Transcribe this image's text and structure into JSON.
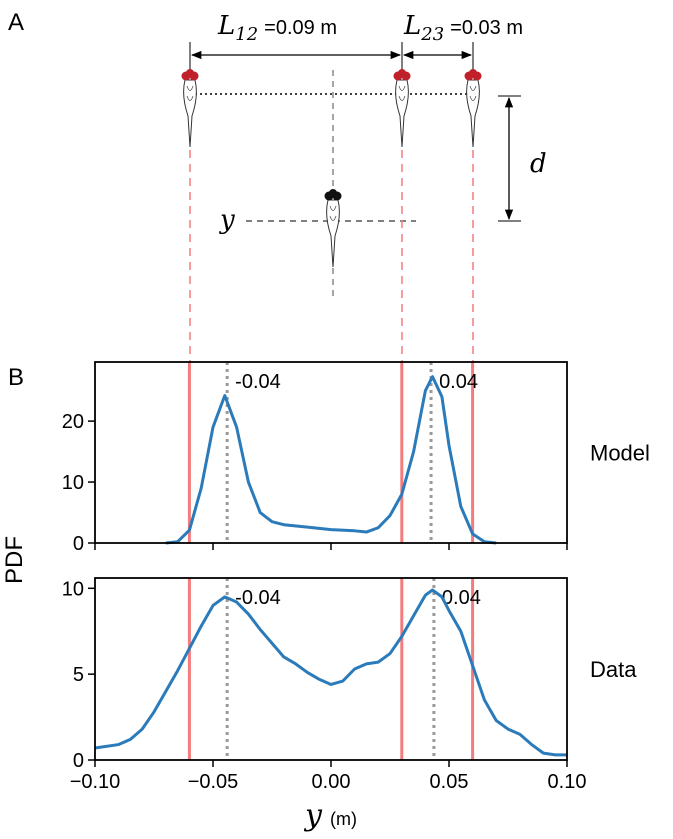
{
  "panel_a": {
    "label": "A",
    "l12": {
      "symbol": "L",
      "subscript": "12",
      "text": "=0.09 m"
    },
    "l23": {
      "symbol": "L",
      "subscript": "23",
      "text": "=0.03 m"
    },
    "d": "d",
    "y": "y"
  },
  "figure": {
    "label": "B",
    "ylabel": "PDF",
    "xlabel": "y",
    "xlabel_unit": "(m)"
  },
  "chart_data": [
    {
      "type": "line",
      "label": "Model",
      "color": "#2b7bba",
      "x": [
        -0.07,
        -0.065,
        -0.06,
        -0.055,
        -0.05,
        -0.045,
        -0.04,
        -0.035,
        -0.03,
        -0.025,
        -0.02,
        -0.01,
        0.0,
        0.01,
        0.015,
        0.02,
        0.025,
        0.03,
        0.035,
        0.04,
        0.043,
        0.047,
        0.05,
        0.055,
        0.06,
        0.065,
        0.07
      ],
      "values": [
        0,
        0.2,
        2.1,
        9,
        19,
        24.2,
        19,
        10,
        5,
        3.5,
        3,
        2.6,
        2.2,
        2.0,
        1.8,
        2.5,
        4.5,
        8,
        15,
        25,
        27.3,
        24,
        16,
        6,
        1.5,
        0.2,
        0
      ],
      "xlim": [
        -0.1,
        0.1
      ],
      "ylim": [
        0,
        29.7
      ],
      "yticks": [
        0,
        10,
        20
      ],
      "xticks": [
        -0.1,
        -0.05,
        0,
        0.05,
        0.1
      ],
      "vlines": {
        "values": [
          -0.06,
          0.03,
          0.06
        ],
        "color": "#f47c7c"
      },
      "peaks": {
        "values": [
          -0.044,
          0.0424
        ],
        "value_labels": [
          "-0.04",
          "0.04"
        ],
        "color": "#999999"
      }
    },
    {
      "type": "line",
      "label": "Data",
      "color": "#2b7bba",
      "x": [
        -0.1,
        -0.09,
        -0.085,
        -0.08,
        -0.075,
        -0.07,
        -0.065,
        -0.06,
        -0.055,
        -0.05,
        -0.045,
        -0.04,
        -0.035,
        -0.03,
        -0.025,
        -0.02,
        -0.015,
        -0.01,
        -0.005,
        0.0,
        0.005,
        0.01,
        0.015,
        0.02,
        0.025,
        0.03,
        0.035,
        0.04,
        0.043,
        0.047,
        0.05,
        0.055,
        0.06,
        0.065,
        0.07,
        0.075,
        0.08,
        0.085,
        0.09,
        0.095,
        0.1
      ],
      "values": [
        0.7,
        0.9,
        1.2,
        1.8,
        2.8,
        4.0,
        5.2,
        6.5,
        7.8,
        9.0,
        9.5,
        9.2,
        8.5,
        7.6,
        6.8,
        6.0,
        5.6,
        5.1,
        4.7,
        4.4,
        4.6,
        5.3,
        5.6,
        5.7,
        6.2,
        7.2,
        8.4,
        9.6,
        9.9,
        9.5,
        8.7,
        7.5,
        5.5,
        3.5,
        2.3,
        1.8,
        1.5,
        0.9,
        0.4,
        0.3,
        0.3
      ],
      "xlim": [
        -0.1,
        0.1
      ],
      "ylim": [
        0,
        10.6
      ],
      "yticks": [
        0,
        5,
        10
      ],
      "xticks": [
        {
          "value": -0.1,
          "label": "−0.10"
        },
        {
          "value": -0.05,
          "label": "−0.05"
        },
        {
          "value": 0,
          "label": "0.00"
        },
        {
          "value": 0.05,
          "label": "0.05"
        },
        {
          "value": 0.1,
          "label": "0.10"
        }
      ],
      "vlines": {
        "values": [
          -0.06,
          0.03,
          0.06
        ],
        "color": "#f47c7c"
      },
      "peaks": {
        "values": [
          -0.044,
          0.0436
        ],
        "value_labels": [
          "-0.04",
          "0.04"
        ],
        "color": "#999999"
      }
    }
  ]
}
